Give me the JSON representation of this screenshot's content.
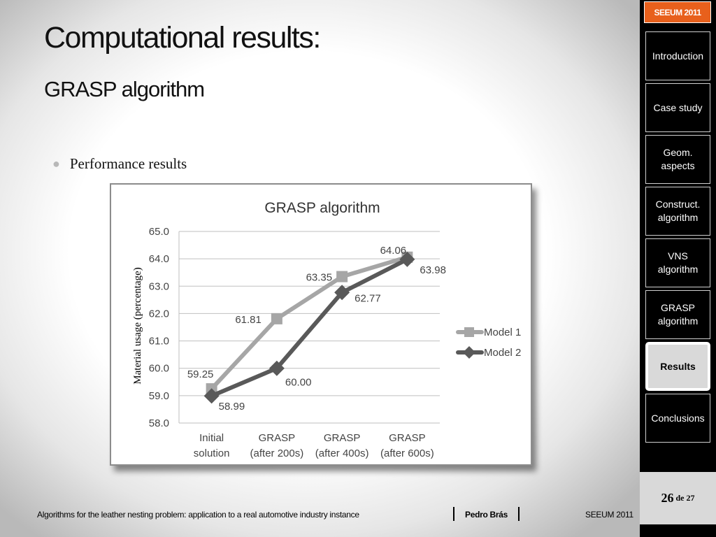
{
  "slide": {
    "title": "Computational results:",
    "subtitle": "GRASP algorithm",
    "bullet": "Performance results"
  },
  "sidebar": {
    "badge": "SEEUM 2011",
    "items": [
      {
        "label": "Introduction",
        "active": false
      },
      {
        "label": "Case study",
        "active": false
      },
      {
        "label": "Geom. aspects",
        "active": false
      },
      {
        "label": "Construct. algorithm",
        "active": false
      },
      {
        "label": "VNS algorithm",
        "active": false
      },
      {
        "label": "GRASP algorithm",
        "active": false
      },
      {
        "label": "Results",
        "active": true
      },
      {
        "label": "Conclusions",
        "active": false
      }
    ]
  },
  "page": {
    "current": "26",
    "of": "de",
    "total": "27"
  },
  "footer": {
    "paper_title": "Algorithms for the leather nesting problem: application to a real automotive industry instance",
    "author": "Pedro Brás",
    "event": "SEEUM 2011"
  },
  "colors": {
    "model1": "#a6a6a6",
    "model2": "#595959",
    "accent": "#e8601c"
  },
  "chart_data": {
    "type": "line",
    "title": "GRASP algorithm",
    "ylabel": "Material usage (percentage)",
    "xlabel": "",
    "categories": [
      [
        "Initial",
        "solution"
      ],
      [
        "GRASP",
        "(after 200s)"
      ],
      [
        "GRASP",
        "(after 400s)"
      ],
      [
        "GRASP",
        "(after 600s)"
      ]
    ],
    "ylim": [
      58.0,
      65.0
    ],
    "yticks": [
      "65.0",
      "64.0",
      "63.0",
      "62.0",
      "61.0",
      "60.0",
      "59.0",
      "58.0"
    ],
    "grid": true,
    "legend": "right",
    "series": [
      {
        "name": "Model 1",
        "marker": "square",
        "values": [
          59.25,
          61.81,
          63.35,
          64.06
        ],
        "labels": [
          "59.25",
          "61.81",
          "63.35",
          "64.06"
        ]
      },
      {
        "name": "Model 2",
        "marker": "diamond",
        "values": [
          58.99,
          60.0,
          62.77,
          63.98
        ],
        "labels": [
          "58.99",
          "60.00",
          "62.77",
          "63.98"
        ]
      }
    ]
  }
}
